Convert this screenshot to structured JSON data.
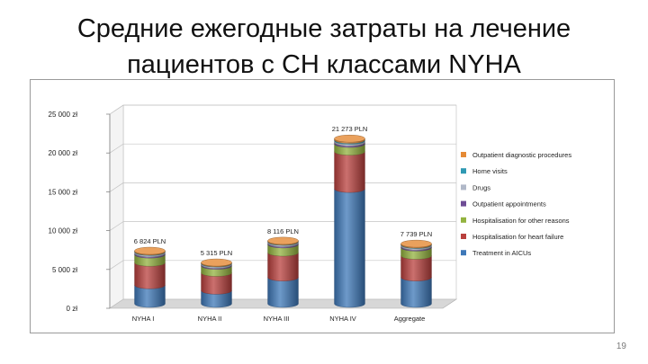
{
  "slide": {
    "title_line1": "Средние ежегодные затраты на лечение",
    "title_line2": "пациентов с СН классами NYHA",
    "page_number": "19"
  },
  "chart_data": {
    "type": "bar",
    "stacked": true,
    "categories": [
      "NYHA I",
      "NYHA II",
      "NYHA III",
      "NYHA IV",
      "Aggregate"
    ],
    "totals_labels": [
      "6 824 PLN",
      "5 315 PLN",
      "8 116 PLN",
      "21 273 PLN",
      "7 739 PLN"
    ],
    "y_ticks": [
      "0 zł",
      "5 000 zł",
      "10 000 zł",
      "15 000 zł",
      "20 000 zł",
      "25 000 zł"
    ],
    "ylim": [
      0,
      25000
    ],
    "legend_position": "right",
    "series": [
      {
        "name": "Treatment in AICUs",
        "color": "#3e78b8",
        "values": [
          2400,
          1700,
          3400,
          14800,
          3400
        ]
      },
      {
        "name": "Hospitalisation for heart failure",
        "color": "#b9403d",
        "values": [
          2900,
          2300,
          3200,
          4800,
          2800
        ]
      },
      {
        "name": "Hospitalisation for other reasons",
        "color": "#93b33f",
        "values": [
          1050,
          900,
          1050,
          1000,
          1050
        ]
      },
      {
        "name": "Outpatient appointments",
        "color": "#6e4c95",
        "values": [
          150,
          130,
          150,
          200,
          150
        ]
      },
      {
        "name": "Drugs",
        "color": "#b0b8c8",
        "values": [
          180,
          160,
          180,
          200,
          180
        ]
      },
      {
        "name": "Home visits",
        "color": "#2f99b3",
        "values": [
          54,
          45,
          56,
          123,
          59
        ]
      },
      {
        "name": "Outpatient diagnostic procedures",
        "color": "#e58a35",
        "values": [
          90,
          80,
          80,
          150,
          100
        ]
      }
    ]
  }
}
